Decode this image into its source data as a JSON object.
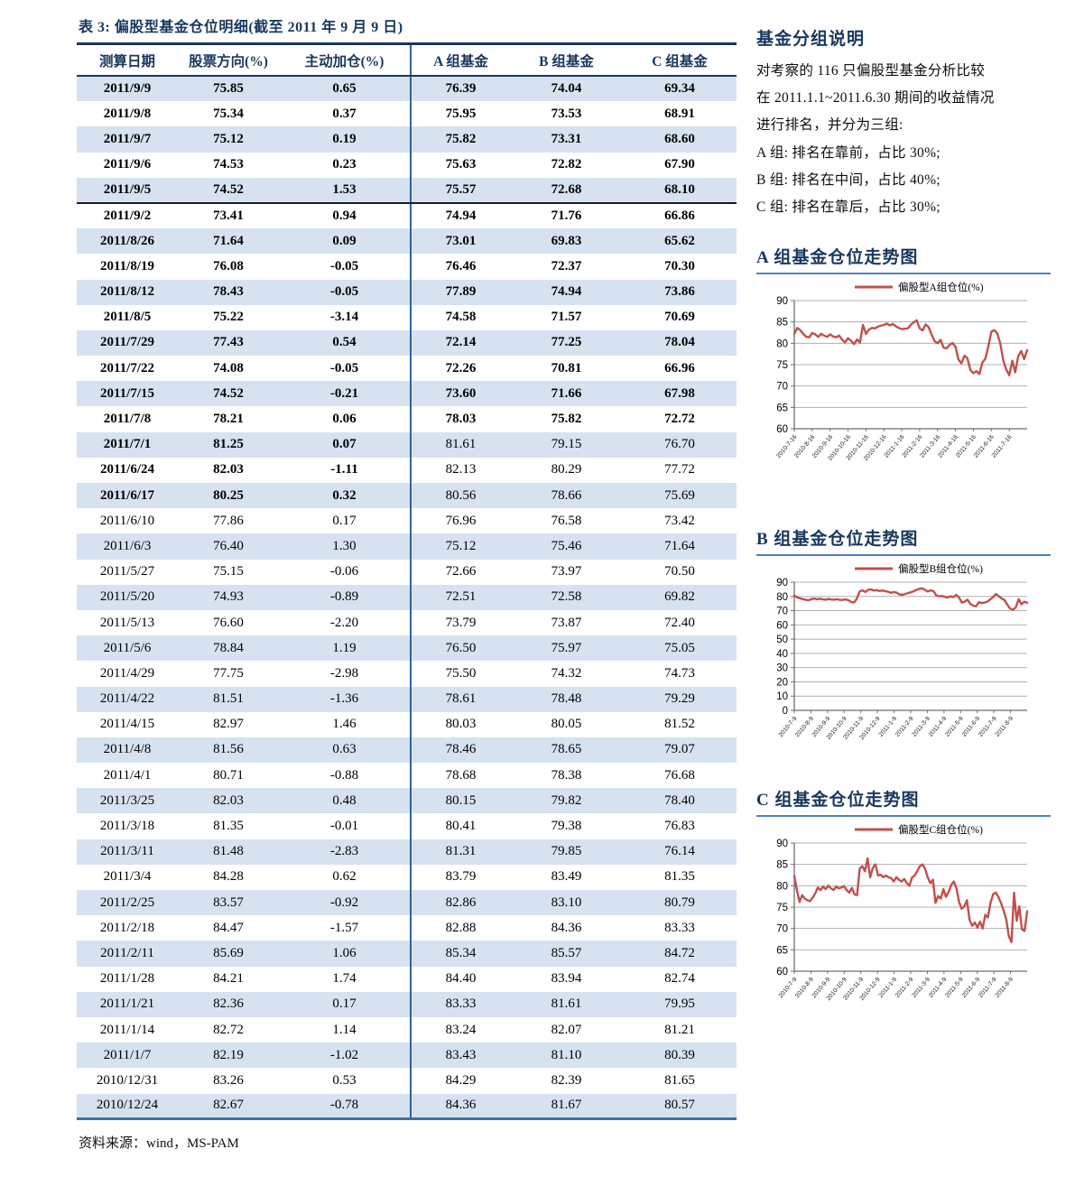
{
  "table": {
    "title": "表 3:  偏股型基金仓位明细(截至 2011 年 9 月 9 日)",
    "columns": [
      "测算日期",
      "股票方向(%)",
      "主动加仓(%)",
      "A 组基金",
      "B 组基金",
      "C 组基金"
    ],
    "rows": [
      {
        "cells": [
          "2011/9/9",
          "75.85",
          "0.65",
          "76.39",
          "74.04",
          "69.34"
        ],
        "bold": "all",
        "thick": false
      },
      {
        "cells": [
          "2011/9/8",
          "75.34",
          "0.37",
          "75.95",
          "73.53",
          "68.91"
        ],
        "bold": "all",
        "thick": false
      },
      {
        "cells": [
          "2011/9/7",
          "75.12",
          "0.19",
          "75.82",
          "73.31",
          "68.60"
        ],
        "bold": "all",
        "thick": false
      },
      {
        "cells": [
          "2011/9/6",
          "74.53",
          "0.23",
          "75.63",
          "72.82",
          "67.90"
        ],
        "bold": "all",
        "thick": false
      },
      {
        "cells": [
          "2011/9/5",
          "74.52",
          "1.53",
          "75.57",
          "72.68",
          "68.10"
        ],
        "bold": "all",
        "thick": true
      },
      {
        "cells": [
          "2011/9/2",
          "73.41",
          "0.94",
          "74.94",
          "71.76",
          "66.86"
        ],
        "bold": "all",
        "thick": false
      },
      {
        "cells": [
          "2011/8/26",
          "71.64",
          "0.09",
          "73.01",
          "69.83",
          "65.62"
        ],
        "bold": "all",
        "thick": false
      },
      {
        "cells": [
          "2011/8/19",
          "76.08",
          "-0.05",
          "76.46",
          "72.37",
          "70.30"
        ],
        "bold": "all",
        "thick": false
      },
      {
        "cells": [
          "2011/8/12",
          "78.43",
          "-0.05",
          "77.89",
          "74.94",
          "73.86"
        ],
        "bold": "all",
        "thick": false
      },
      {
        "cells": [
          "2011/8/5",
          "75.22",
          "-3.14",
          "74.58",
          "71.57",
          "70.69"
        ],
        "bold": "all",
        "thick": false
      },
      {
        "cells": [
          "2011/7/29",
          "77.43",
          "0.54",
          "72.14",
          "77.25",
          "78.04"
        ],
        "bold": "all",
        "thick": false
      },
      {
        "cells": [
          "2011/7/22",
          "74.08",
          "-0.05",
          "72.26",
          "70.81",
          "66.96"
        ],
        "bold": "all",
        "thick": false
      },
      {
        "cells": [
          "2011/7/15",
          "74.52",
          "-0.21",
          "73.60",
          "71.66",
          "67.98"
        ],
        "bold": "all",
        "thick": false
      },
      {
        "cells": [
          "2011/7/8",
          "78.21",
          "0.06",
          "78.03",
          "75.82",
          "72.72"
        ],
        "bold": "all",
        "thick": false
      },
      {
        "cells": [
          "2011/7/1",
          "81.25",
          "0.07",
          "81.61",
          "79.15",
          "76.70"
        ],
        "bold": "left",
        "thick": false
      },
      {
        "cells": [
          "2011/6/24",
          "82.03",
          "-1.11",
          "82.13",
          "80.29",
          "77.72"
        ],
        "bold": "left",
        "thick": false
      },
      {
        "cells": [
          "2011/6/17",
          "80.25",
          "0.32",
          "80.56",
          "78.66",
          "75.69"
        ],
        "bold": "left",
        "thick": false
      },
      {
        "cells": [
          "2011/6/10",
          "77.86",
          "0.17",
          "76.96",
          "76.58",
          "73.42"
        ],
        "bold": "none",
        "thick": false
      },
      {
        "cells": [
          "2011/6/3",
          "76.40",
          "1.30",
          "75.12",
          "75.46",
          "71.64"
        ],
        "bold": "none",
        "thick": false
      },
      {
        "cells": [
          "2011/5/27",
          "75.15",
          "-0.06",
          "72.66",
          "73.97",
          "70.50"
        ],
        "bold": "none",
        "thick": false
      },
      {
        "cells": [
          "2011/5/20",
          "74.93",
          "-0.89",
          "72.51",
          "72.58",
          "69.82"
        ],
        "bold": "none",
        "thick": false
      },
      {
        "cells": [
          "2011/5/13",
          "76.60",
          "-2.20",
          "73.79",
          "73.87",
          "72.40"
        ],
        "bold": "none",
        "thick": false
      },
      {
        "cells": [
          "2011/5/6",
          "78.84",
          "1.19",
          "76.50",
          "75.97",
          "75.05"
        ],
        "bold": "none",
        "thick": false
      },
      {
        "cells": [
          "2011/4/29",
          "77.75",
          "-2.98",
          "75.50",
          "74.32",
          "74.73"
        ],
        "bold": "none",
        "thick": false
      },
      {
        "cells": [
          "2011/4/22",
          "81.51",
          "-1.36",
          "78.61",
          "78.48",
          "79.29"
        ],
        "bold": "none",
        "thick": false
      },
      {
        "cells": [
          "2011/4/15",
          "82.97",
          "1.46",
          "80.03",
          "80.05",
          "81.52"
        ],
        "bold": "none",
        "thick": false
      },
      {
        "cells": [
          "2011/4/8",
          "81.56",
          "0.63",
          "78.46",
          "78.65",
          "79.07"
        ],
        "bold": "none",
        "thick": false
      },
      {
        "cells": [
          "2011/4/1",
          "80.71",
          "-0.88",
          "78.68",
          "78.38",
          "76.68"
        ],
        "bold": "none",
        "thick": false
      },
      {
        "cells": [
          "2011/3/25",
          "82.03",
          "0.48",
          "80.15",
          "79.82",
          "78.40"
        ],
        "bold": "none",
        "thick": false
      },
      {
        "cells": [
          "2011/3/18",
          "81.35",
          "-0.01",
          "80.41",
          "79.38",
          "76.83"
        ],
        "bold": "none",
        "thick": false
      },
      {
        "cells": [
          "2011/3/11",
          "81.48",
          "-2.83",
          "81.31",
          "79.85",
          "76.14"
        ],
        "bold": "none",
        "thick": false
      },
      {
        "cells": [
          "2011/3/4",
          "84.28",
          "0.62",
          "83.79",
          "83.49",
          "81.35"
        ],
        "bold": "none",
        "thick": false
      },
      {
        "cells": [
          "2011/2/25",
          "83.57",
          "-0.92",
          "82.86",
          "83.10",
          "80.79"
        ],
        "bold": "none",
        "thick": false
      },
      {
        "cells": [
          "2011/2/18",
          "84.47",
          "-1.57",
          "82.88",
          "84.36",
          "83.33"
        ],
        "bold": "none",
        "thick": false
      },
      {
        "cells": [
          "2011/2/11",
          "85.69",
          "1.06",
          "85.34",
          "85.57",
          "84.72"
        ],
        "bold": "none",
        "thick": false
      },
      {
        "cells": [
          "2011/1/28",
          "84.21",
          "1.74",
          "84.40",
          "83.94",
          "82.74"
        ],
        "bold": "none",
        "thick": false
      },
      {
        "cells": [
          "2011/1/21",
          "82.36",
          "0.17",
          "83.33",
          "81.61",
          "79.95"
        ],
        "bold": "none",
        "thick": false
      },
      {
        "cells": [
          "2011/1/14",
          "82.72",
          "1.14",
          "83.24",
          "82.07",
          "81.21"
        ],
        "bold": "none",
        "thick": false
      },
      {
        "cells": [
          "2011/1/7",
          "82.19",
          "-1.02",
          "83.43",
          "81.10",
          "80.39"
        ],
        "bold": "none",
        "thick": false
      },
      {
        "cells": [
          "2010/12/31",
          "83.26",
          "0.53",
          "84.29",
          "82.39",
          "81.65"
        ],
        "bold": "none",
        "thick": false
      },
      {
        "cells": [
          "2010/12/24",
          "82.67",
          "-0.78",
          "84.36",
          "81.67",
          "80.57"
        ],
        "bold": "none",
        "thick": false
      }
    ],
    "source": "资料来源：wind，MS-PAM"
  },
  "group_note": {
    "title": "基金分组说明",
    "lines": [
      "对考察的 116 只偏股型基金分析比较",
      "在 2011.1.1~2011.6.30 期间的收益情况",
      "进行排名，并分为三组:",
      "A 组:  排名在靠前，占比 30%;",
      "B 组:  排名在中间，占比 40%;",
      "C 组:  排名在靠后，占比 30%;"
    ]
  },
  "colors": {
    "heading_navy": "#17375e",
    "stripe_blue": "#d6e2f0",
    "divider_blue": "#31659b",
    "underline_blue": "#4f81bd",
    "series_red": "#c0504d"
  },
  "chart_data": [
    {
      "type": "line",
      "title": "A 组基金仓位走势图",
      "legend": "偏股型A组仓位(%)",
      "color": "#c0504d",
      "ylim": [
        60,
        90
      ],
      "yticks": [
        90,
        85,
        80,
        75,
        70,
        65,
        60
      ],
      "grid": true,
      "legend_position": "top",
      "x_labels": [
        "2010-7-16",
        "2010-8-16",
        "2010-9-16",
        "2010-10-16",
        "2010-11-16",
        "2010-12-16",
        "2011-1-16",
        "2011-2-16",
        "2011-3-16",
        "2011-4-16",
        "2011-5-16",
        "2011-6-16",
        "2011-7-16"
      ],
      "values": [
        82.2,
        83.6,
        83.1,
        82.2,
        81.5,
        81.4,
        82.4,
        82.1,
        81.5,
        82.2,
        81.8,
        81.5,
        82.1,
        81.6,
        81.4,
        81.8,
        80.9,
        80.2,
        81.2,
        80.6,
        79.8,
        80.9,
        80.2,
        84.3,
        82.2,
        83.2,
        83.6,
        83.5,
        83.9,
        84.1,
        84.3,
        84.6,
        84.2,
        84.5,
        84.0,
        83.6,
        83.3,
        83.4,
        83.5,
        84.3,
        84.9,
        85.4,
        83.5,
        83.0,
        84.4,
        83.8,
        82.0,
        80.5,
        80.0,
        80.8,
        79.0,
        78.8,
        79.6,
        80.1,
        79.2,
        76.2,
        75.3,
        77.1,
        76.5,
        73.7,
        73.0,
        73.5,
        72.8,
        75.5,
        76.4,
        79.3,
        82.7,
        83.1,
        82.3,
        80.0,
        76.0,
        73.9,
        72.5,
        75.9,
        73.2,
        77.0,
        78.2,
        76.3,
        78.4
      ]
    },
    {
      "type": "line",
      "title": "B 组基金仓位走势图",
      "legend": "偏股型B组仓位(%)",
      "color": "#c0504d",
      "ylim": [
        0,
        90
      ],
      "yticks": [
        90,
        80,
        70,
        60,
        50,
        40,
        30,
        20,
        10,
        0
      ],
      "grid": true,
      "legend_position": "top",
      "x_labels": [
        "2010-7-9",
        "2010-8-9",
        "2010-9-9",
        "2010-10-9",
        "2010-11-9",
        "2010-12-9",
        "2011-1-9",
        "2011-2-9",
        "2011-3-9",
        "2011-4-9",
        "2011-5-9",
        "2011-6-9",
        "2011-7-9",
        "2011-8-9"
      ],
      "values": [
        80.6,
        79.3,
        78.7,
        78.1,
        77.7,
        77.3,
        78.1,
        78.5,
        78.0,
        78.4,
        77.9,
        77.7,
        78.2,
        77.8,
        77.7,
        78.1,
        77.6,
        77.5,
        77.9,
        77.4,
        76.1,
        75.7,
        78.3,
        83.5,
        84.3,
        83.1,
        84.7,
        84.9,
        84.1,
        84.4,
        83.8,
        84.2,
        83.7,
        83.3,
        82.5,
        83.1,
        82.7,
        81.4,
        81.1,
        81.7,
        82.3,
        82.9,
        83.6,
        84.5,
        85.3,
        85.7,
        84.7,
        83.5,
        84.3,
        83.7,
        80.7,
        80.1,
        80.3,
        79.7,
        79.3,
        80.1,
        79.5,
        81.1,
        79.3,
        75.7,
        76.3,
        77.7,
        74.7,
        73.5,
        73.1,
        75.9,
        75.3,
        75.7,
        76.3,
        77.9,
        79.5,
        81.7,
        80.3,
        78.5,
        77.5,
        74.3,
        71.5,
        70.7,
        72.3,
        78.1,
        74.5,
        76.3,
        75.5
      ]
    },
    {
      "type": "line",
      "title": "C 组基金仓位走势图",
      "legend": "偏股型C组仓位(%)",
      "color": "#c0504d",
      "ylim": [
        60,
        90
      ],
      "yticks": [
        90,
        85,
        80,
        75,
        70,
        65,
        60
      ],
      "grid": true,
      "legend_position": "top",
      "x_labels": [
        "2010-7-9",
        "2010-8-9",
        "2010-9-9",
        "2010-10-9",
        "2010-11-9",
        "2010-12-9",
        "2011-1-9",
        "2011-2-9",
        "2011-3-9",
        "2011-4-9",
        "2011-5-9",
        "2011-6-9",
        "2011-7-9",
        "2011-8-9"
      ],
      "values": [
        82.3,
        79.0,
        76.2,
        77.8,
        77.0,
        76.6,
        76.4,
        77.2,
        78.2,
        79.6,
        79.0,
        79.8,
        79.2,
        80.0,
        79.4,
        79.0,
        79.8,
        79.4,
        79.6,
        79.9,
        79.0,
        78.4,
        79.5,
        78.0,
        77.8,
        84.0,
        84.6,
        83.4,
        86.4,
        82.0,
        84.2,
        85.0,
        82.4,
        82.6,
        82.0,
        82.4,
        82.0,
        81.8,
        81.0,
        82.0,
        81.4,
        81.0,
        81.6,
        80.6,
        80.0,
        81.9,
        82.4,
        83.4,
        84.6,
        85.0,
        84.0,
        82.0,
        80.6,
        81.4,
        76.0,
        77.6,
        77.0,
        79.2,
        77.4,
        78.6,
        80.2,
        81.0,
        79.4,
        76.2,
        74.6,
        75.2,
        76.6,
        72.0,
        70.6,
        71.4,
        70.2,
        71.6,
        70.0,
        73.2,
        72.6,
        76.0,
        78.0,
        78.4,
        77.4,
        76.0,
        74.2,
        72.2,
        68.2,
        66.8,
        78.4,
        71.8,
        75.2,
        69.8,
        69.4,
        74.0
      ]
    }
  ]
}
